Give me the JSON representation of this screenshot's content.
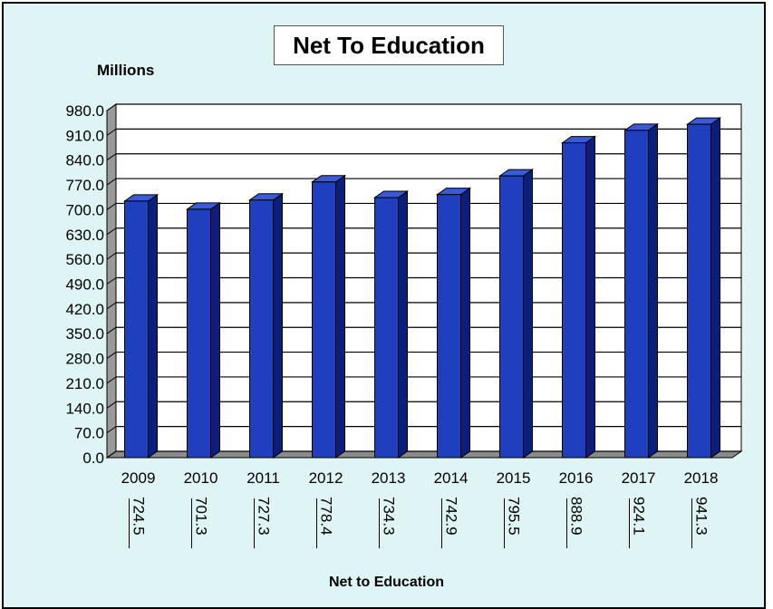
{
  "chart_data": {
    "type": "bar",
    "title": "Net To Education",
    "ylabel": "Millions",
    "xlabel": "Net to Education",
    "categories": [
      "2009",
      "2010",
      "2011",
      "2012",
      "2013",
      "2014",
      "2015",
      "2016",
      "2017",
      "2018"
    ],
    "values": [
      724.5,
      701.3,
      727.3,
      778.4,
      734.3,
      742.9,
      795.5,
      888.9,
      924.1,
      941.3
    ],
    "value_labels": [
      "724.5",
      "701.3",
      "727.3",
      "778.4",
      "734.3",
      "742.9",
      "795.5",
      "888.9",
      "924.1",
      "941.3"
    ],
    "yticks": [
      "0.0",
      "70.0",
      "140.0",
      "210.0",
      "280.0",
      "350.0",
      "420.0",
      "490.0",
      "560.0",
      "630.0",
      "700.0",
      "770.0",
      "840.0",
      "910.0",
      "980.0"
    ],
    "ylim": [
      0,
      980
    ],
    "grid": true,
    "bar_color": "#1f3fbf",
    "background_color": "#dff4f4"
  }
}
